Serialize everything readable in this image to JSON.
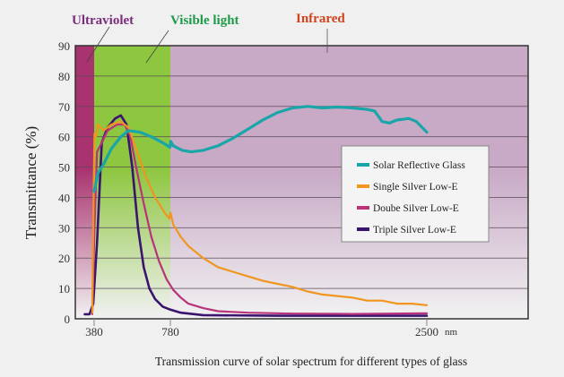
{
  "chart_data": {
    "type": "line",
    "title": "Transmission curve of solar spectrum for different types of glass",
    "xlabel": "nm",
    "ylabel": "Transmittance (%)",
    "ylim": [
      0,
      90
    ],
    "yticks": [
      0,
      10,
      20,
      30,
      40,
      50,
      60,
      70,
      80,
      90
    ],
    "xticks": [
      {
        "value": 380,
        "label": "380"
      },
      {
        "value": 780,
        "label": "780"
      },
      {
        "value": 2500,
        "label": "2500"
      }
    ],
    "x_unit_label": "nm",
    "grid": "horizontal",
    "legend_position": "right-middle",
    "regions": [
      {
        "name": "Ultraviolet",
        "from": 280,
        "to": 380,
        "color": "#a8336f",
        "label_color": "#7a2d7a"
      },
      {
        "name": "Visible light",
        "from": 380,
        "to": 780,
        "color": "#8dc63f",
        "label_color": "#1e9a4a"
      },
      {
        "name": "Infrared",
        "from": 780,
        "to": 2900,
        "color": "#c8a9c6",
        "label_color": "#d0431f"
      }
    ],
    "series": [
      {
        "name": "Solar Reflective Glass",
        "color": "#1aa6a8",
        "points": [
          [
            380,
            42
          ],
          [
            400,
            48
          ],
          [
            430,
            51
          ],
          [
            470,
            56
          ],
          [
            520,
            60
          ],
          [
            560,
            62
          ],
          [
            620,
            61.5
          ],
          [
            680,
            60
          ],
          [
            740,
            58
          ],
          [
            778,
            56.5
          ],
          [
            782,
            58.5
          ],
          [
            800,
            57
          ],
          [
            860,
            55.5
          ],
          [
            920,
            55
          ],
          [
            1000,
            55.5
          ],
          [
            1100,
            57
          ],
          [
            1200,
            59.5
          ],
          [
            1300,
            62.5
          ],
          [
            1400,
            65.5
          ],
          [
            1500,
            68
          ],
          [
            1600,
            69.5
          ],
          [
            1700,
            70
          ],
          [
            1800,
            69.5
          ],
          [
            1900,
            69.8
          ],
          [
            2000,
            69.5
          ],
          [
            2100,
            69
          ],
          [
            2150,
            68.5
          ],
          [
            2200,
            65
          ],
          [
            2250,
            64.5
          ],
          [
            2300,
            65.5
          ],
          [
            2380,
            66
          ],
          [
            2430,
            65
          ],
          [
            2480,
            62.5
          ],
          [
            2500,
            61.5
          ]
        ]
      },
      {
        "name": "Single Silver Low-E",
        "color": "#f0961e",
        "points": [
          [
            370,
            2
          ],
          [
            378,
            45
          ],
          [
            382,
            61
          ],
          [
            390,
            60
          ],
          [
            400,
            64
          ],
          [
            430,
            62
          ],
          [
            470,
            64
          ],
          [
            520,
            65
          ],
          [
            560,
            63
          ],
          [
            600,
            56
          ],
          [
            650,
            47
          ],
          [
            700,
            40
          ],
          [
            750,
            35
          ],
          [
            775,
            33
          ],
          [
            780,
            35
          ],
          [
            800,
            31
          ],
          [
            850,
            27
          ],
          [
            900,
            24
          ],
          [
            1000,
            20
          ],
          [
            1100,
            17
          ],
          [
            1200,
            15.5
          ],
          [
            1300,
            14
          ],
          [
            1400,
            12.5
          ],
          [
            1500,
            11.5
          ],
          [
            1600,
            10.5
          ],
          [
            1700,
            9
          ],
          [
            1800,
            8
          ],
          [
            1900,
            7.5
          ],
          [
            2000,
            7
          ],
          [
            2100,
            6
          ],
          [
            2200,
            6
          ],
          [
            2300,
            5
          ],
          [
            2400,
            5
          ],
          [
            2500,
            4.5
          ]
        ]
      },
      {
        "name": "Doube Silver Low-E",
        "color": "#b8337a",
        "points": [
          [
            370,
            1.5
          ],
          [
            382,
            30
          ],
          [
            395,
            55
          ],
          [
            420,
            58
          ],
          [
            450,
            62
          ],
          [
            500,
            64
          ],
          [
            540,
            64
          ],
          [
            570,
            60
          ],
          [
            600,
            50
          ],
          [
            640,
            38
          ],
          [
            680,
            27
          ],
          [
            720,
            19
          ],
          [
            760,
            13
          ],
          [
            800,
            9.5
          ],
          [
            850,
            7
          ],
          [
            900,
            5
          ],
          [
            1000,
            3.5
          ],
          [
            1100,
            2.5
          ],
          [
            1300,
            2
          ],
          [
            1600,
            1.7
          ],
          [
            2000,
            1.6
          ],
          [
            2500,
            1.8
          ]
        ]
      },
      {
        "name": "Triple Silver Low-E",
        "color": "#3b1470",
        "points": [
          [
            330,
            1.5
          ],
          [
            355,
            1.5
          ],
          [
            375,
            5
          ],
          [
            395,
            25
          ],
          [
            420,
            58
          ],
          [
            450,
            63
          ],
          [
            490,
            66
          ],
          [
            520,
            67
          ],
          [
            550,
            64
          ],
          [
            580,
            50
          ],
          [
            610,
            30
          ],
          [
            640,
            17
          ],
          [
            670,
            10
          ],
          [
            700,
            6.5
          ],
          [
            740,
            4
          ],
          [
            780,
            3
          ],
          [
            850,
            2
          ],
          [
            1000,
            1.2
          ],
          [
            1500,
            1
          ],
          [
            2000,
            1
          ],
          [
            2500,
            1
          ]
        ]
      }
    ]
  },
  "annotations": {
    "ultraviolet": "Ultraviolet",
    "visible": "Visible light",
    "infrared": "Infrared"
  },
  "legend": [
    {
      "label": "Solar Reflective Glass",
      "color": "#1aa6a8"
    },
    {
      "label": "Single Silver Low-E",
      "color": "#f0961e"
    },
    {
      "label": "Doube Silver Low-E",
      "color": "#b8337a"
    },
    {
      "label": "Triple Silver Low-E",
      "color": "#3b1470"
    }
  ]
}
